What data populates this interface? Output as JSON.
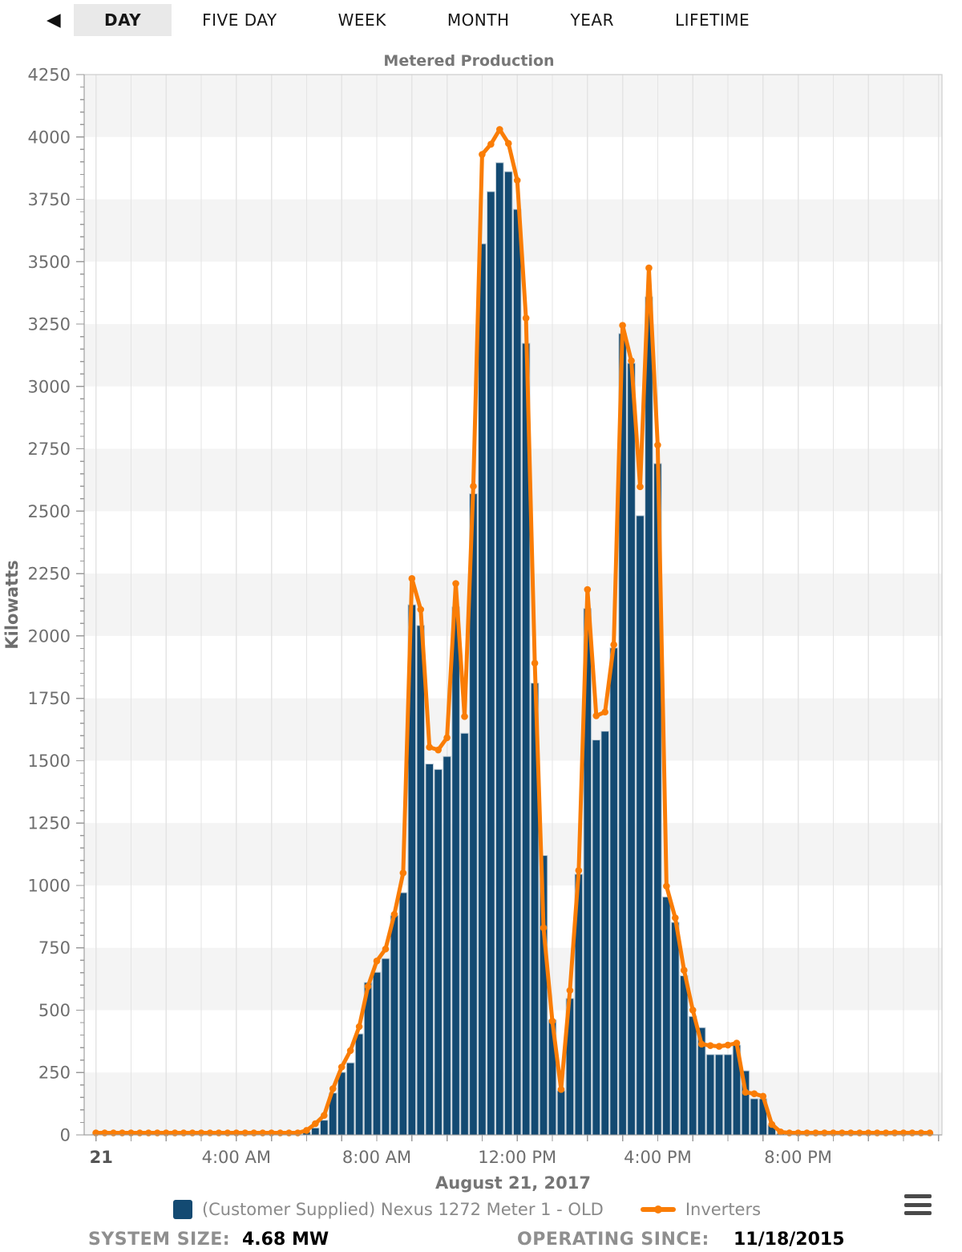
{
  "toolbar": {
    "back_icon": "◀",
    "tabs": [
      {
        "label": "DAY",
        "active": true
      },
      {
        "label": "FIVE DAY",
        "active": false
      },
      {
        "label": "WEEK",
        "active": false
      },
      {
        "label": "MONTH",
        "active": false
      },
      {
        "label": "YEAR",
        "active": false
      },
      {
        "label": "LIFETIME",
        "active": false
      }
    ]
  },
  "chart_data": {
    "type": "bar",
    "title": "Metered Production",
    "ylabel": "Kilowatts",
    "xlabel": "August 21, 2017",
    "ylim": [
      0,
      4250
    ],
    "ytick_step": 250,
    "y_minor_step": 50,
    "grid": "alternating horizontal bands every 250, vertical gridline every hour",
    "legend_position": "bottom",
    "x_unit": "hour-of-day",
    "x": [
      0,
      0.25,
      0.5,
      0.75,
      1,
      1.25,
      1.5,
      1.75,
      2,
      2.25,
      2.5,
      2.75,
      3,
      3.25,
      3.5,
      3.75,
      4,
      4.25,
      4.5,
      4.75,
      5,
      5.25,
      5.5,
      5.75,
      6,
      6.25,
      6.5,
      6.75,
      7,
      7.25,
      7.5,
      7.75,
      8,
      8.25,
      8.5,
      8.75,
      9,
      9.25,
      9.5,
      9.75,
      10,
      10.25,
      10.5,
      10.75,
      11,
      11.25,
      11.5,
      11.75,
      12,
      12.25,
      12.5,
      12.75,
      13,
      13.25,
      13.5,
      13.75,
      14,
      14.25,
      14.5,
      14.75,
      15,
      15.25,
      15.5,
      15.75,
      16,
      16.25,
      16.5,
      16.75,
      17,
      17.25,
      17.5,
      17.75,
      18,
      18.25,
      18.5,
      18.75,
      19,
      19.25,
      19.5,
      19.75,
      20,
      20.25,
      20.5,
      20.75,
      21,
      21.25,
      21.5,
      21.75,
      22,
      22.25,
      22.5,
      22.75,
      23,
      23.25,
      23.5,
      23.75
    ],
    "xticks": [
      {
        "h": 0,
        "label": "21",
        "bold": true
      },
      {
        "h": 4,
        "label": "4:00 AM",
        "bold": false
      },
      {
        "h": 8,
        "label": "8:00 AM",
        "bold": false
      },
      {
        "h": 12,
        "label": "12:00 PM",
        "bold": false
      },
      {
        "h": 16,
        "label": "4:00 PM",
        "bold": false
      },
      {
        "h": 20,
        "label": "8:00 PM",
        "bold": false
      }
    ],
    "series": [
      {
        "name": "(Customer Supplied) Nexus 1272 Meter 1 - OLD",
        "kind": "column",
        "color": "#134a72",
        "border_color": "#c2cfd8",
        "values": [
          3,
          3,
          3,
          3,
          3,
          3,
          3,
          3,
          3,
          3,
          3,
          3,
          3,
          3,
          3,
          3,
          3,
          3,
          3,
          3,
          3,
          3,
          3,
          3,
          12,
          28,
          59,
          168,
          251,
          289,
          405,
          611,
          652,
          707,
          879,
          971,
          2125,
          2042,
          1487,
          1465,
          1517,
          2116,
          1610,
          2570,
          3572,
          3781,
          3897,
          3861,
          3710,
          3173,
          1811,
          1120,
          461,
          177,
          547,
          1045,
          2110,
          1583,
          1618,
          1952,
          3212,
          3093,
          2482,
          3359,
          2691,
          954,
          852,
          638,
          475,
          430,
          322,
          322,
          322,
          360,
          257,
          145,
          145,
          40,
          6,
          3,
          3,
          3,
          3,
          3,
          3,
          3,
          3,
          3,
          3,
          3,
          3,
          3,
          3,
          3,
          3,
          3
        ]
      },
      {
        "name": "Inverters",
        "kind": "line",
        "color": "#fa7d06",
        "values": [
          8,
          8,
          8,
          8,
          8,
          8,
          8,
          8,
          8,
          8,
          8,
          8,
          8,
          8,
          8,
          8,
          8,
          8,
          8,
          8,
          8,
          8,
          8,
          8,
          18,
          45,
          78,
          185,
          272,
          338,
          434,
          595,
          697,
          745,
          884,
          1050,
          2230,
          2106,
          1554,
          1543,
          1592,
          2210,
          1677,
          2600,
          3930,
          3971,
          4030,
          3974,
          3826,
          3274,
          1891,
          830,
          456,
          182,
          579,
          1060,
          2186,
          1680,
          1695,
          1965,
          3245,
          3103,
          2598,
          3475,
          2765,
          997,
          870,
          660,
          500,
          364,
          358,
          355,
          360,
          368,
          171,
          165,
          155,
          42,
          12,
          8,
          8,
          8,
          8,
          8,
          8,
          8,
          8,
          8,
          8,
          8,
          8,
          8,
          8,
          8,
          8,
          8
        ]
      }
    ],
    "colors": {
      "band_gray": "#f4f4f4",
      "vertical_grid": "#e4e4e4",
      "plot_border": "#cfcfcf",
      "axis_line": "#9a9a9a"
    }
  },
  "footer": {
    "system_size_label": "SYSTEM SIZE:",
    "system_size_value": "4.68 MW",
    "operating_since_label": "OPERATING SINCE:",
    "operating_since_value": "11/18/2015"
  }
}
